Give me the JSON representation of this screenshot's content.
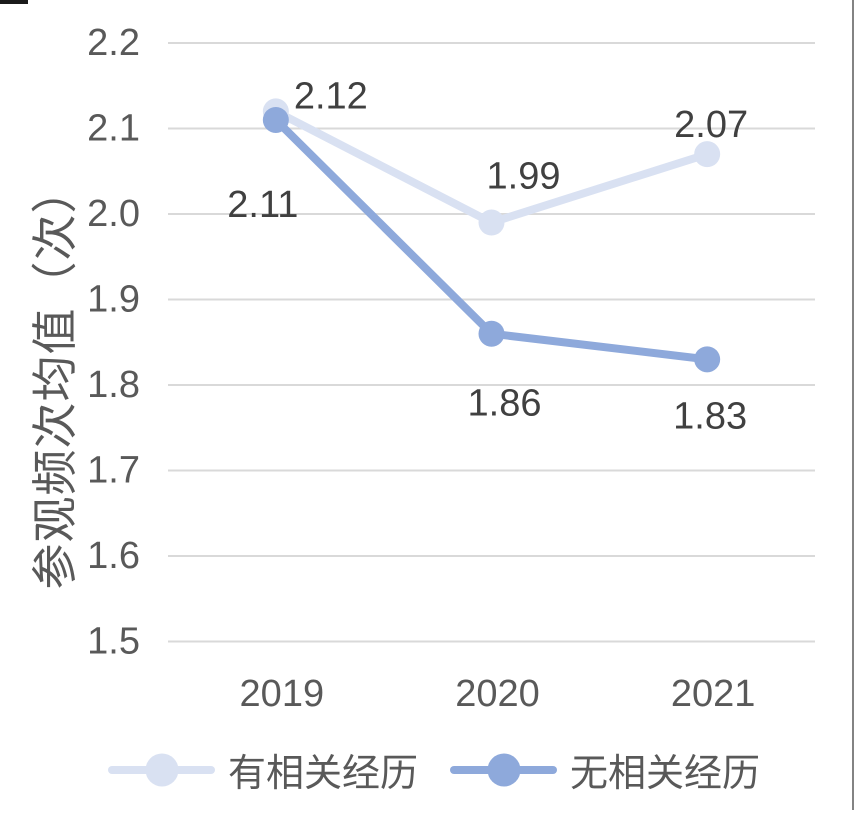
{
  "chart_data": {
    "type": "line",
    "title": "",
    "xlabel": "",
    "ylabel": "参观频次均值（次）",
    "categories": [
      "2019",
      "2020",
      "2021"
    ],
    "series": [
      {
        "name": "有相关经历",
        "color": "#D9E1F2",
        "values": [
          2.12,
          1.99,
          2.07
        ],
        "labels": [
          "2.12",
          "1.99",
          "2.07"
        ]
      },
      {
        "name": "无相关经历",
        "color": "#8EA9DB",
        "values": [
          2.11,
          1.86,
          1.83
        ],
        "labels": [
          "2.11",
          "1.86",
          "1.83"
        ]
      }
    ],
    "y_ticks": [
      "2.2",
      "2.1",
      "2.0",
      "1.9",
      "1.8",
      "1.7",
      "1.6",
      "1.5"
    ],
    "ylim": [
      1.5,
      2.2
    ],
    "grid": true,
    "legend_position": "bottom",
    "colors": {
      "grid": "#D9D9D9",
      "axis_text": "#595959",
      "data_label": "#404040",
      "border": "#595959"
    }
  }
}
